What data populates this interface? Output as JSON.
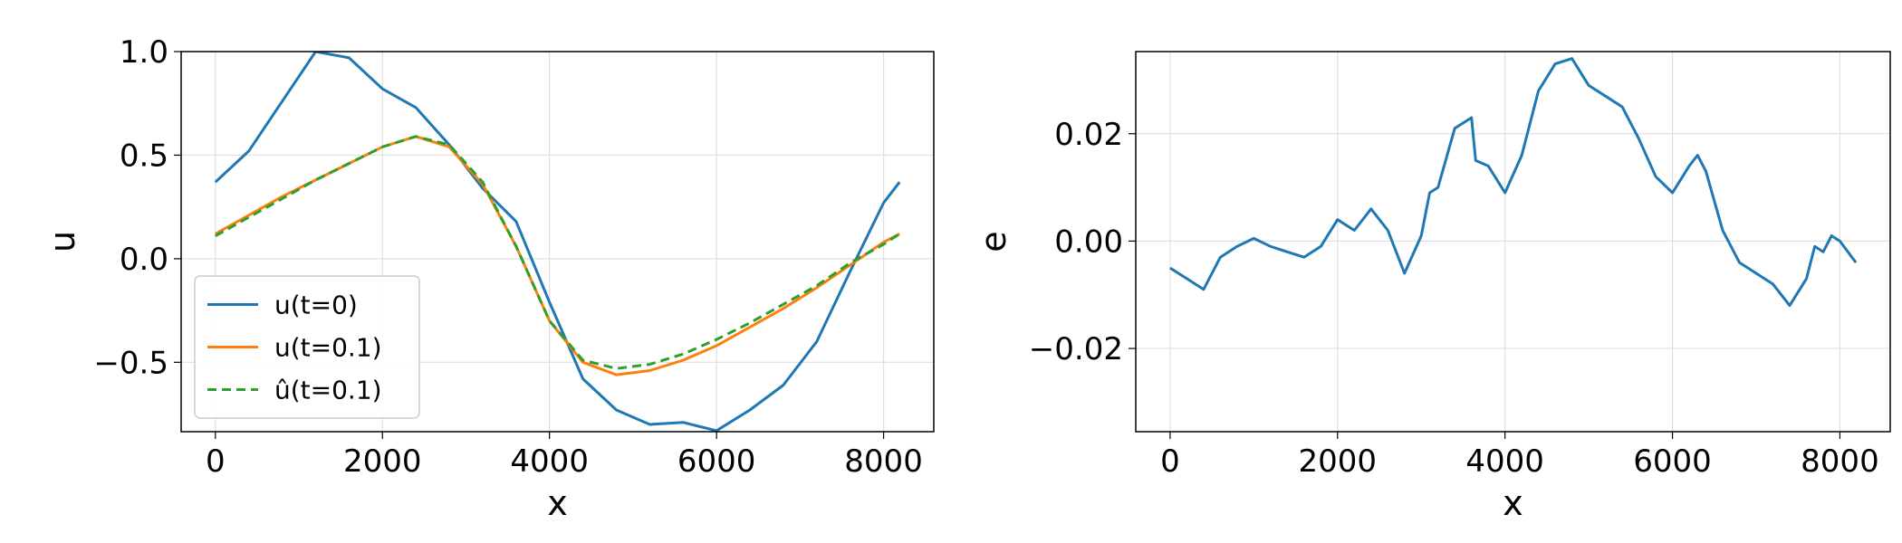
{
  "chart_data": [
    {
      "type": "line",
      "xlabel": "x",
      "ylabel": "u",
      "x": [
        0,
        400,
        800,
        1200,
        1600,
        2000,
        2400,
        2800,
        3200,
        3600,
        4000,
        4400,
        4800,
        5200,
        5600,
        6000,
        6400,
        6800,
        7200,
        7600,
        8000,
        8191
      ],
      "series": [
        {
          "name": "u(t=0)",
          "color": "#1f77b4",
          "linestyle": "solid",
          "values": [
            0.37,
            0.52,
            0.76,
            1.0,
            0.97,
            0.82,
            0.73,
            0.55,
            0.34,
            0.18,
            -0.21,
            -0.58,
            -0.73,
            -0.8,
            -0.79,
            -0.83,
            -0.73,
            -0.61,
            -0.4,
            -0.06,
            0.27,
            0.37
          ]
        },
        {
          "name": "u(t=0.1)",
          "color": "#ff7f0e",
          "linestyle": "solid",
          "values": [
            0.12,
            0.21,
            0.3,
            0.38,
            0.46,
            0.54,
            0.59,
            0.54,
            0.36,
            0.06,
            -0.3,
            -0.5,
            -0.56,
            -0.54,
            -0.49,
            -0.42,
            -0.33,
            -0.24,
            -0.14,
            -0.03,
            0.08,
            0.12
          ]
        },
        {
          "name": "û(t=0.1)",
          "color": "#2ca02c",
          "linestyle": "dashed",
          "values": [
            0.11,
            0.2,
            0.29,
            0.38,
            0.46,
            0.54,
            0.59,
            0.55,
            0.37,
            0.06,
            -0.3,
            -0.49,
            -0.53,
            -0.51,
            -0.46,
            -0.39,
            -0.31,
            -0.22,
            -0.13,
            -0.02,
            0.07,
            0.12
          ]
        }
      ],
      "xlim": [
        -410,
        8601
      ],
      "xticks": [
        0,
        2000,
        4000,
        6000,
        8000
      ],
      "ylim": [
        -0.835,
        1.0
      ],
      "yticks": [
        {
          "value": -0.5,
          "label": "−0.5"
        },
        {
          "value": 0,
          "label": "0.0"
        },
        0.5,
        {
          "value": 1.0,
          "label": "1.0"
        }
      ],
      "grid": true,
      "legend": "lower left"
    },
    {
      "type": "line",
      "xlabel": "x",
      "ylabel": "e",
      "color": "#1f77b4",
      "x": [
        0,
        200,
        400,
        600,
        800,
        1000,
        1200,
        1400,
        1600,
        1800,
        2000,
        2200,
        2400,
        2600,
        2800,
        3000,
        3100,
        3200,
        3400,
        3600,
        3650,
        3800,
        4000,
        4200,
        4400,
        4600,
        4800,
        5000,
        5200,
        5400,
        5600,
        5800,
        6000,
        6200,
        6300,
        6400,
        6600,
        6800,
        7000,
        7200,
        7400,
        7600,
        7700,
        7800,
        7900,
        8000,
        8191
      ],
      "values": [
        -0.005,
        -0.007,
        -0.009,
        -0.003,
        -0.001,
        0.0005,
        -0.001,
        -0.002,
        -0.003,
        -0.001,
        0.004,
        0.002,
        0.006,
        0.002,
        -0.006,
        0.001,
        0.009,
        0.01,
        0.021,
        0.023,
        0.015,
        0.014,
        0.009,
        0.016,
        0.028,
        0.033,
        0.034,
        0.029,
        0.027,
        0.025,
        0.019,
        0.012,
        0.009,
        0.014,
        0.016,
        0.013,
        0.002,
        -0.004,
        -0.006,
        -0.008,
        -0.012,
        -0.007,
        -0.001,
        -0.002,
        0.001,
        0.0,
        -0.004
      ],
      "xlim": [
        -410,
        8601
      ],
      "xticks": [
        0,
        2000,
        4000,
        6000,
        8000
      ],
      "ylim": [
        -0.0355,
        0.0353
      ],
      "yticks": [
        {
          "value": -0.02,
          "label": "−0.02"
        },
        {
          "value": 0,
          "label": "0.00"
        },
        0.02
      ],
      "grid": true
    }
  ]
}
